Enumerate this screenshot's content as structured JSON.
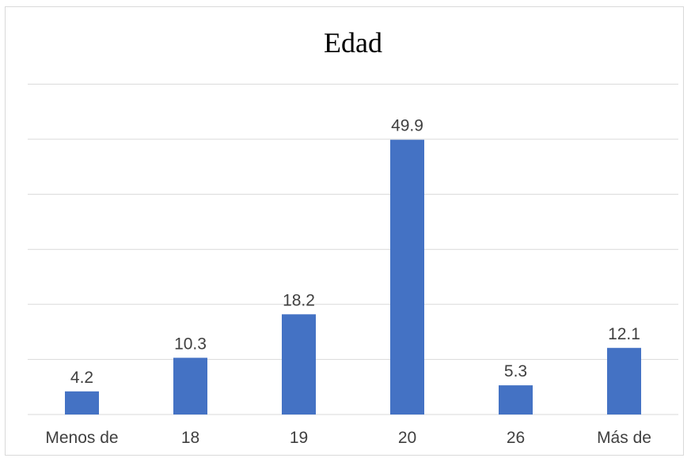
{
  "chart_data": {
    "type": "bar",
    "title": "Edad",
    "categories": [
      "Menos de",
      "18",
      "19",
      "20",
      "26",
      "Más de"
    ],
    "values": [
      4.2,
      10.3,
      18.2,
      49.9,
      5.3,
      12.1
    ],
    "data_labels": [
      "4.2",
      "10.3",
      "18.2",
      "49.9",
      "5.3",
      "12.1"
    ],
    "ylim": [
      0,
      60
    ],
    "grid": true,
    "bar_color": "#4472c4",
    "grid_color": "#d9d9d9"
  }
}
